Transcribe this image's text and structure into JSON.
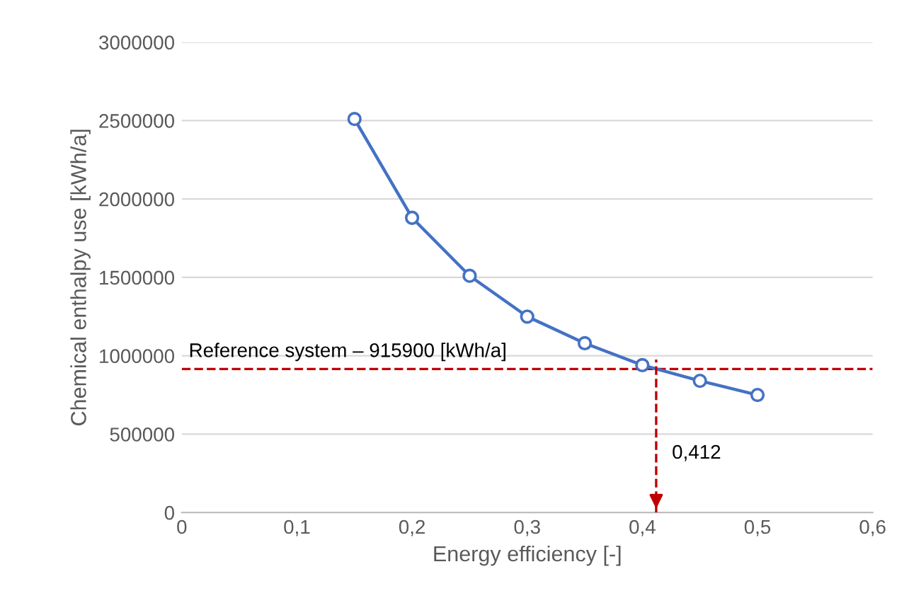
{
  "chart_data": {
    "type": "line",
    "xlabel": "Energy efficiency [-]",
    "ylabel": "Chemical enthalpy use [kWh/a]",
    "x": [
      0.15,
      0.2,
      0.25,
      0.3,
      0.35,
      0.4,
      0.45,
      0.5
    ],
    "series": [
      {
        "color": "#4472c4",
        "values": [
          2510000,
          1880000,
          1510000,
          1250000,
          1080000,
          940000,
          840000,
          750000
        ]
      }
    ],
    "marker": "circle",
    "line_style": "solid",
    "xlim": [
      0,
      0.6
    ],
    "xticks": [
      0,
      {
        "value": 0.1,
        "label": "0,1"
      },
      {
        "value": 0.2,
        "label": "0,2"
      },
      {
        "value": 0.3,
        "label": "0,3"
      },
      {
        "value": 0.4,
        "label": "0,4"
      },
      {
        "value": 0.5,
        "label": "0,5"
      },
      {
        "value": 0.6,
        "label": "0,6"
      }
    ],
    "ylim": [
      0,
      3000000
    ],
    "yticks": [
      0,
      500000,
      1000000,
      1500000,
      2000000,
      2500000,
      3000000
    ],
    "grid": "y",
    "ref_lines": [
      {
        "axis": "y",
        "value": 915900,
        "label": "Reference system – 915900 [kWh/a]",
        "color": "#c00000",
        "line_style": "dashed"
      },
      {
        "axis": "x",
        "value": 0.412,
        "label": "0,412",
        "color": "#c00000",
        "line_style": "dashed"
      }
    ]
  }
}
